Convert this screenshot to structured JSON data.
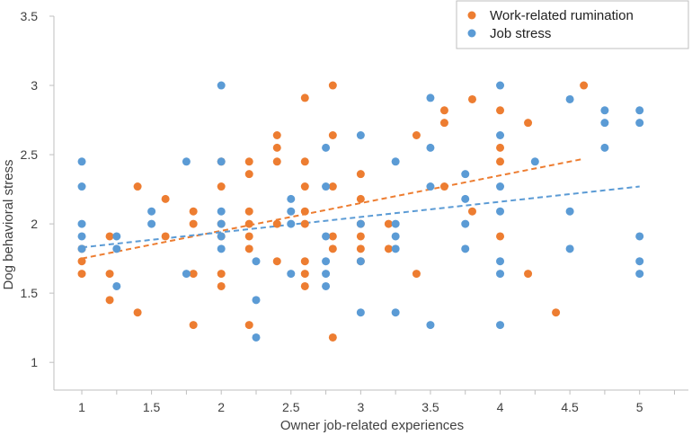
{
  "chart_data": {
    "type": "scatter",
    "title": "",
    "xlabel": "Owner job-related experiences",
    "ylabel": "Dog behavioral stress",
    "xlim": [
      0.8,
      5.35
    ],
    "ylim": [
      0.8,
      3.5
    ],
    "x_ticks": [
      1,
      1.5,
      2,
      2.5,
      3,
      3.5,
      4,
      4.5,
      5
    ],
    "x_tick_labels": [
      "1",
      "1.5",
      "2",
      "2.5",
      "3",
      "3.5",
      "4",
      "4.5",
      "5"
    ],
    "y_ticks": [
      1,
      1.5,
      2,
      2.5,
      3,
      3.5
    ],
    "y_tick_labels": [
      "1",
      "1.5",
      "2",
      "2.5",
      "3",
      "3.5"
    ],
    "grid": false,
    "legend_position": "top-right",
    "series": [
      {
        "name": "Work-related rumination",
        "color": "#ED7D31",
        "trendline": {
          "x": [
            1,
            4.6
          ],
          "y": [
            1.75,
            2.47
          ]
        },
        "points": [
          [
            1,
            1.82
          ],
          [
            1,
            1.73
          ],
          [
            1,
            1.64
          ],
          [
            1.2,
            1.91
          ],
          [
            1.2,
            1.64
          ],
          [
            1.2,
            1.45
          ],
          [
            1.4,
            2.27
          ],
          [
            1.4,
            1.36
          ],
          [
            1.6,
            2.18
          ],
          [
            1.6,
            1.91
          ],
          [
            1.8,
            2.09
          ],
          [
            1.8,
            2.0
          ],
          [
            1.8,
            1.64
          ],
          [
            1.8,
            1.27
          ],
          [
            2,
            2.45
          ],
          [
            2,
            2.27
          ],
          [
            2,
            2.0
          ],
          [
            2,
            1.91
          ],
          [
            2,
            1.64
          ],
          [
            2,
            1.55
          ],
          [
            2.2,
            2.45
          ],
          [
            2.2,
            2.36
          ],
          [
            2.2,
            2.09
          ],
          [
            2.2,
            2.0
          ],
          [
            2.2,
            1.91
          ],
          [
            2.2,
            1.82
          ],
          [
            2.2,
            1.27
          ],
          [
            2.4,
            2.64
          ],
          [
            2.4,
            2.55
          ],
          [
            2.4,
            2.45
          ],
          [
            2.4,
            2.0
          ],
          [
            2.4,
            1.73
          ],
          [
            2.6,
            2.91
          ],
          [
            2.6,
            2.45
          ],
          [
            2.6,
            2.27
          ],
          [
            2.6,
            2.09
          ],
          [
            2.6,
            2.0
          ],
          [
            2.6,
            1.73
          ],
          [
            2.6,
            1.64
          ],
          [
            2.6,
            1.55
          ],
          [
            2.8,
            3.0
          ],
          [
            2.8,
            2.64
          ],
          [
            2.8,
            2.27
          ],
          [
            2.8,
            1.91
          ],
          [
            2.8,
            1.82
          ],
          [
            2.8,
            1.18
          ],
          [
            3,
            2.36
          ],
          [
            3,
            2.18
          ],
          [
            3,
            2.0
          ],
          [
            3,
            1.91
          ],
          [
            3,
            1.82
          ],
          [
            3,
            1.73
          ],
          [
            3.2,
            2.0
          ],
          [
            3.2,
            1.82
          ],
          [
            3.4,
            2.64
          ],
          [
            3.4,
            1.64
          ],
          [
            3.6,
            2.82
          ],
          [
            3.6,
            2.73
          ],
          [
            3.6,
            2.27
          ],
          [
            3.8,
            2.9
          ],
          [
            3.8,
            2.09
          ],
          [
            4,
            2.82
          ],
          [
            4,
            2.55
          ],
          [
            4,
            2.45
          ],
          [
            4,
            1.91
          ],
          [
            4.2,
            2.73
          ],
          [
            4.2,
            1.64
          ],
          [
            4.4,
            1.36
          ],
          [
            4.6,
            3.0
          ]
        ]
      },
      {
        "name": "Job stress",
        "color": "#5B9BD5",
        "trendline": {
          "x": [
            1,
            5
          ],
          "y": [
            1.83,
            2.27
          ]
        },
        "points": [
          [
            1,
            2.45
          ],
          [
            1,
            2.27
          ],
          [
            1,
            2.0
          ],
          [
            1,
            1.91
          ],
          [
            1,
            1.82
          ],
          [
            1.25,
            1.91
          ],
          [
            1.25,
            1.82
          ],
          [
            1.25,
            1.55
          ],
          [
            1.5,
            2.09
          ],
          [
            1.5,
            2.0
          ],
          [
            1.75,
            2.45
          ],
          [
            1.75,
            1.64
          ],
          [
            2,
            3.0
          ],
          [
            2,
            2.45
          ],
          [
            2,
            2.09
          ],
          [
            2,
            2.0
          ],
          [
            2,
            1.91
          ],
          [
            2,
            1.82
          ],
          [
            2.25,
            1.73
          ],
          [
            2.25,
            1.45
          ],
          [
            2.25,
            1.18
          ],
          [
            2.5,
            2.18
          ],
          [
            2.5,
            2.09
          ],
          [
            2.5,
            2.0
          ],
          [
            2.5,
            1.64
          ],
          [
            2.75,
            2.55
          ],
          [
            2.75,
            2.27
          ],
          [
            2.75,
            1.91
          ],
          [
            2.75,
            1.73
          ],
          [
            2.75,
            1.64
          ],
          [
            2.75,
            1.55
          ],
          [
            3,
            2.64
          ],
          [
            3,
            2.0
          ],
          [
            3,
            1.73
          ],
          [
            3,
            1.36
          ],
          [
            3.25,
            2.45
          ],
          [
            3.25,
            2.0
          ],
          [
            3.25,
            1.91
          ],
          [
            3.25,
            1.82
          ],
          [
            3.25,
            1.36
          ],
          [
            3.5,
            2.91
          ],
          [
            3.5,
            2.55
          ],
          [
            3.5,
            2.27
          ],
          [
            3.5,
            1.27
          ],
          [
            3.75,
            2.36
          ],
          [
            3.75,
            2.18
          ],
          [
            3.75,
            2.0
          ],
          [
            3.75,
            1.82
          ],
          [
            4,
            3.0
          ],
          [
            4,
            2.64
          ],
          [
            4,
            2.27
          ],
          [
            4,
            2.09
          ],
          [
            4,
            1.73
          ],
          [
            4,
            1.64
          ],
          [
            4,
            1.27
          ],
          [
            4.25,
            2.45
          ],
          [
            4.5,
            2.9
          ],
          [
            4.5,
            2.09
          ],
          [
            4.5,
            1.82
          ],
          [
            4.75,
            2.82
          ],
          [
            4.75,
            2.73
          ],
          [
            4.75,
            2.55
          ],
          [
            5,
            2.82
          ],
          [
            5,
            2.73
          ],
          [
            5,
            1.91
          ],
          [
            5,
            1.73
          ],
          [
            5,
            1.64
          ]
        ]
      }
    ]
  }
}
